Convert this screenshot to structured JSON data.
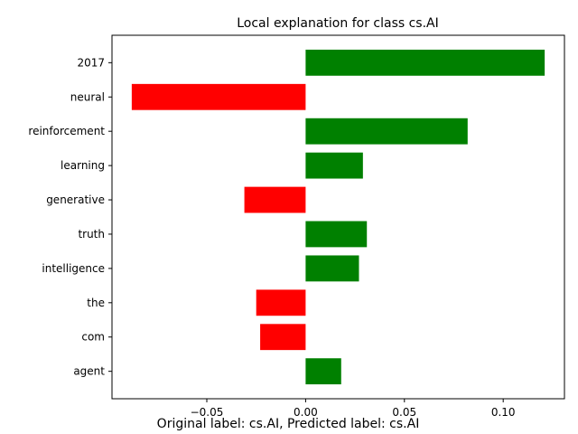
{
  "chart_data": {
    "type": "bar",
    "orientation": "horizontal",
    "title": "Local explanation for class cs.AI",
    "caption": "Original label: cs.AI, Predicted label: cs.AI",
    "xlabel": "",
    "ylabel": "",
    "categories": [
      "2017",
      "neural",
      "reinforcement",
      "learning",
      "generative",
      "truth",
      "intelligence",
      "the",
      "com",
      "agent"
    ],
    "values": [
      0.121,
      -0.088,
      0.082,
      0.029,
      -0.031,
      0.031,
      0.027,
      -0.025,
      -0.023,
      0.018
    ],
    "xlim": [
      -0.098,
      0.131
    ],
    "xticks": [
      -0.05,
      0.0,
      0.05,
      0.1
    ],
    "xtick_labels": [
      "−0.05",
      "0.00",
      "0.05",
      "0.10"
    ],
    "positive_color": "#008000",
    "negative_color": "#ff0000",
    "grid": false,
    "legend": "none"
  }
}
